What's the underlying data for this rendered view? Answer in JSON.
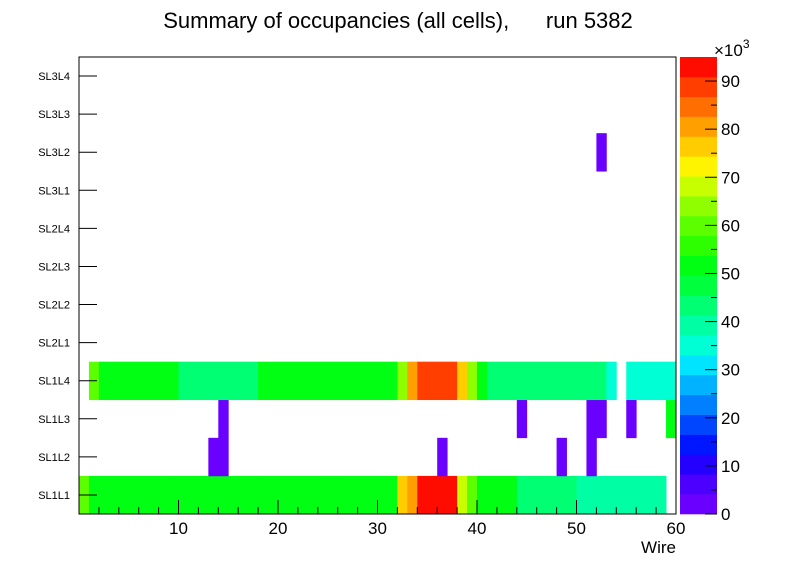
{
  "chart_data": {
    "type": "heatmap",
    "title": "Summary of occupancies (all cells),      run 5382",
    "xlabel": "Wire",
    "ylabel": "",
    "xlim": [
      0,
      60
    ],
    "x_ticks": [
      10,
      20,
      30,
      40,
      50,
      60
    ],
    "y_categories": [
      "SL1L1",
      "SL1L2",
      "SL1L3",
      "SL1L4",
      "SL2L1",
      "SL2L2",
      "SL2L3",
      "SL2L4",
      "SL3L1",
      "SL3L2",
      "SL3L3",
      "SL3L4"
    ],
    "z_range": [
      0,
      95000
    ],
    "z_multiplier_label": "×10",
    "z_multiplier_exponent": "3",
    "z_ticks": [
      "0",
      "10",
      "20",
      "30",
      "40",
      "50",
      "60",
      "70",
      "80",
      "90"
    ],
    "palette": [
      "#6a00ff",
      "#4c00ff",
      "#2400ff",
      "#0016ff",
      "#0046ff",
      "#0080ff",
      "#00b2ff",
      "#00e4ff",
      "#00ffd4",
      "#00ffa4",
      "#00ff72",
      "#00ff3c",
      "#00ff12",
      "#2dff00",
      "#5cff00",
      "#8fff00",
      "#c8ff00",
      "#fff400",
      "#ffcc00",
      "#ff9f00",
      "#ff6e00",
      "#ff3e00",
      "#ff0c00"
    ],
    "series": [
      {
        "name": "SL1L1",
        "row": 0,
        "cells": [
          [
            1,
            1,
            58000
          ],
          [
            2,
            9,
            53000
          ],
          [
            10,
            18,
            51000
          ],
          [
            19,
            25,
            53000
          ],
          [
            26,
            26,
            51000
          ],
          [
            27,
            32,
            53000
          ],
          [
            33,
            33,
            75000
          ],
          [
            34,
            34,
            80000
          ],
          [
            35,
            38,
            92000
          ],
          [
            39,
            39,
            68000
          ],
          [
            40,
            40,
            59000
          ],
          [
            41,
            44,
            52000
          ],
          [
            45,
            50,
            45000
          ],
          [
            51,
            59,
            40000
          ]
        ]
      },
      {
        "name": "SL1L2",
        "row": 1,
        "cells": [
          [
            14,
            15,
            3000
          ],
          [
            37,
            37,
            3000
          ],
          [
            49,
            49,
            3000
          ],
          [
            52,
            52,
            3000
          ]
        ]
      },
      {
        "name": "SL1L3",
        "row": 2,
        "cells": [
          [
            15,
            15,
            3000
          ],
          [
            45,
            45,
            3000
          ],
          [
            52,
            53,
            3000
          ],
          [
            56,
            56,
            3000
          ],
          [
            60,
            60,
            52000
          ]
        ]
      },
      {
        "name": "SL1L4",
        "row": 3,
        "cells": [
          [
            2,
            2,
            58000
          ],
          [
            3,
            10,
            52000
          ],
          [
            11,
            18,
            45000
          ],
          [
            19,
            32,
            51000
          ],
          [
            33,
            33,
            66000
          ],
          [
            34,
            34,
            80000
          ],
          [
            35,
            38,
            88000
          ],
          [
            39,
            39,
            78000
          ],
          [
            40,
            40,
            62000
          ],
          [
            41,
            41,
            52000
          ],
          [
            42,
            46,
            45000
          ],
          [
            47,
            53,
            42000
          ],
          [
            54,
            54,
            36000
          ],
          [
            56,
            60,
            35000
          ]
        ]
      },
      {
        "name": "SL3L2",
        "row": 9,
        "cells": [
          [
            53,
            53,
            3000
          ]
        ]
      }
    ]
  }
}
